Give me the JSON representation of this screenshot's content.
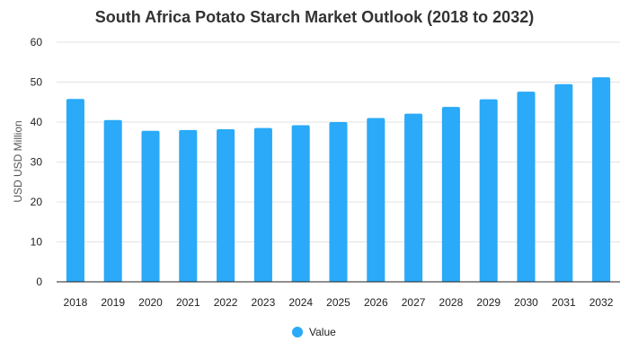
{
  "chart_data": {
    "type": "bar",
    "title": "South Africa Potato Starch Market Outlook (2018 to 2032)",
    "xlabel": "",
    "ylabel": "USD USD Million",
    "categories": [
      "2018",
      "2019",
      "2020",
      "2021",
      "2022",
      "2023",
      "2024",
      "2025",
      "2026",
      "2027",
      "2028",
      "2029",
      "2030",
      "2031",
      "2032"
    ],
    "series": [
      {
        "name": "Value",
        "values": [
          45.8,
          40.5,
          37.8,
          38.0,
          38.2,
          38.5,
          39.2,
          40.0,
          41.0,
          42.1,
          43.8,
          45.7,
          47.6,
          49.5,
          51.2
        ]
      }
    ],
    "ylim": [
      0,
      60
    ],
    "yticks": [
      0,
      10,
      20,
      30,
      40,
      50,
      60
    ],
    "grid": true,
    "legend_position": "bottom-center",
    "colors": {
      "bar": "#2aaaf8"
    }
  }
}
